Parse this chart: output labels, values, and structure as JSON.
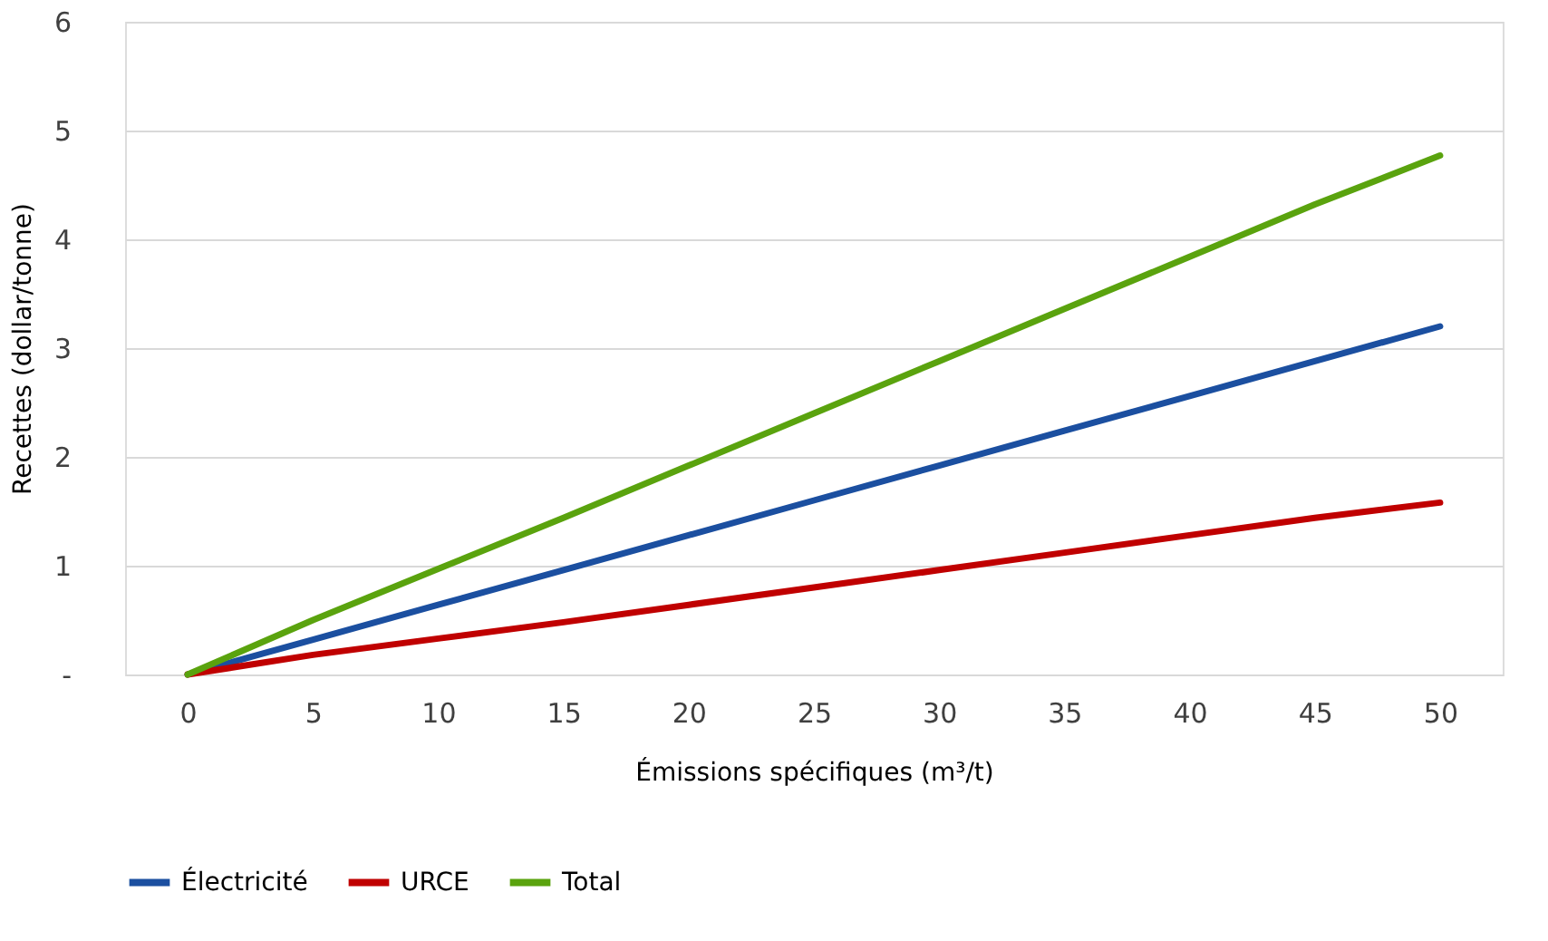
{
  "chart_data": {
    "type": "line",
    "categories": [
      "0",
      "5",
      "10",
      "15",
      "20",
      "25",
      "30",
      "35",
      "40",
      "45",
      "50"
    ],
    "series": [
      {
        "name": "Électricité",
        "color": "#1b4fa0",
        "values": [
          0,
          0.32,
          0.64,
          0.96,
          1.28,
          1.6,
          1.92,
          2.24,
          2.56,
          2.88,
          3.2
        ]
      },
      {
        "name": "URCE",
        "color": "#c00000",
        "values": [
          0,
          0.18,
          0.33,
          0.48,
          0.64,
          0.8,
          0.96,
          1.12,
          1.28,
          1.44,
          1.58
        ]
      },
      {
        "name": "Total",
        "color": "#5aa30e",
        "values": [
          0,
          0.5,
          0.97,
          1.44,
          1.92,
          2.4,
          2.88,
          3.36,
          3.84,
          4.32,
          4.77
        ]
      }
    ],
    "xlabel": "Émissions spécifiques (m³/t)",
    "ylabel": "Recettes (dollar/tonne)",
    "ylim": [
      0,
      6
    ],
    "yticks": [
      {
        "value": 0,
        "label": "-"
      },
      1,
      2,
      3,
      4,
      5,
      6
    ],
    "grid": "y",
    "legend": "bottom",
    "line_style": "solid",
    "marker": "none"
  }
}
